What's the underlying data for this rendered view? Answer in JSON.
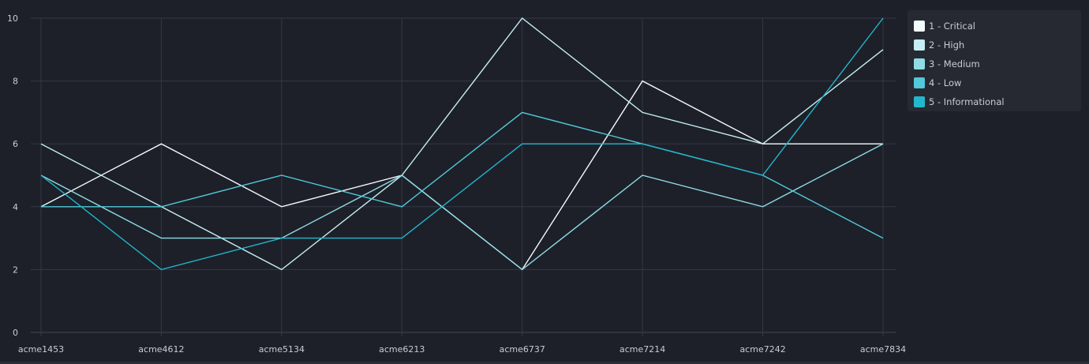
{
  "chart_data": {
    "type": "line",
    "categories": [
      "acme1453",
      "acme4612",
      "acme5134",
      "acme6213",
      "acme6737",
      "acme7214",
      "acme7242",
      "acme7834"
    ],
    "ylim": [
      0,
      10
    ],
    "yticks": [
      0,
      2,
      4,
      6,
      8,
      10
    ],
    "grid": true,
    "legend_position": "top-right",
    "series": [
      {
        "name": "1 - Critical",
        "color": "#f2fcfe",
        "values": [
          4,
          6,
          4,
          5,
          2,
          8,
          6,
          6
        ]
      },
      {
        "name": "2 - High",
        "color": "#c4eef3",
        "values": [
          6,
          4,
          2,
          5,
          10,
          7,
          6,
          9
        ]
      },
      {
        "name": "3 - Medium",
        "color": "#8fdce6",
        "values": [
          5,
          3,
          3,
          5,
          2,
          5,
          4,
          6
        ]
      },
      {
        "name": "4 - Low",
        "color": "#52c8d8",
        "values": [
          4,
          4,
          5,
          4,
          7,
          6,
          5,
          3
        ]
      },
      {
        "name": "5 - Informational",
        "color": "#22b7cc",
        "values": [
          5,
          2,
          3,
          3,
          6,
          6,
          5,
          10
        ]
      }
    ]
  }
}
